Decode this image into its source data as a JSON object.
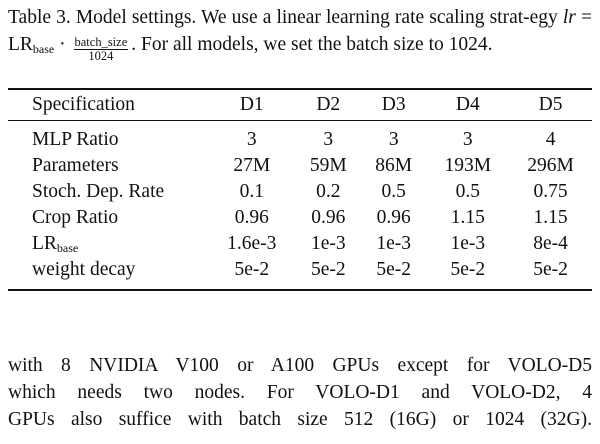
{
  "caption": {
    "prefix": "Table 3. Model settings. We use a linear learning rate scaling strat-egy",
    "lr_var": "lr",
    "eq": "=",
    "lr_main": "LR",
    "lr_sub": "base",
    "dot": "·",
    "frac_num": "batch_size",
    "frac_den": "1024",
    "suffix": ". For all models, we set the batch size to 1024."
  },
  "table": {
    "header": {
      "spec": "Specification",
      "cols": [
        "D1",
        "D2",
        "D3",
        "D4",
        "D5"
      ]
    },
    "rows": [
      {
        "label": "MLP Ratio",
        "values": [
          "3",
          "3",
          "3",
          "3",
          "4"
        ]
      },
      {
        "label": "Parameters",
        "values": [
          "27M",
          "59M",
          "86M",
          "193M",
          "296M"
        ]
      },
      {
        "label": "Stoch. Dep. Rate",
        "values": [
          "0.1",
          "0.2",
          "0.5",
          "0.5",
          "0.75"
        ]
      },
      {
        "label": "Crop Ratio",
        "values": [
          "0.96",
          "0.96",
          "0.96",
          "1.15",
          "1.15"
        ]
      },
      {
        "label_main": "LR",
        "label_sub": "base",
        "values": [
          "1.6e-3",
          "1e-3",
          "1e-3",
          "1e-3",
          "8e-4"
        ]
      },
      {
        "label": "weight decay",
        "values": [
          "5e-2",
          "5e-2",
          "5e-2",
          "5e-2",
          "5e-2"
        ]
      }
    ]
  },
  "body": {
    "lines": [
      "with 8 NVIDIA V100 or A100 GPUs except for VOLO-D5",
      "which needs two nodes. For VOLO-D1 and VOLO-D2, 4",
      "GPUs also suffice with batch size 512 (16G) or 1024 (32G)."
    ]
  }
}
